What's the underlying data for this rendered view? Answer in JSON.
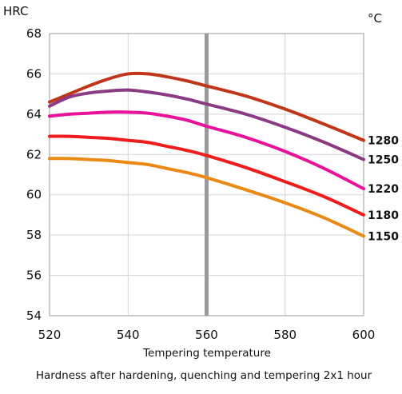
{
  "chart_data": {
    "type": "line",
    "title": "Hardness after hardening, quenching and tempering  2x1 hour",
    "xlabel": "Tempering temperature",
    "ylabel": "HRC",
    "legend_title": "°C",
    "xlim": [
      520,
      600
    ],
    "ylim": [
      54,
      68
    ],
    "xticks": [
      520,
      540,
      560,
      580,
      600
    ],
    "yticks": [
      54,
      56,
      58,
      60,
      62,
      64,
      66,
      68
    ],
    "grid": true,
    "legend_placement": "right, labels at line ends",
    "marker": {
      "x": 560,
      "color": "#9a9a9a"
    },
    "series": [
      {
        "name": "1280",
        "color": "#c0361a",
        "x": [
          520,
          525,
          530,
          535,
          540,
          545,
          550,
          555,
          560,
          570,
          580,
          590,
          600
        ],
        "y": [
          64.6,
          65.0,
          65.4,
          65.75,
          66.0,
          66.0,
          65.85,
          65.65,
          65.4,
          64.9,
          64.25,
          63.5,
          62.7
        ]
      },
      {
        "name": "1250",
        "color": "#8b3a84",
        "x": [
          520,
          525,
          530,
          535,
          540,
          545,
          550,
          555,
          560,
          570,
          580,
          590,
          600
        ],
        "y": [
          64.4,
          64.85,
          65.05,
          65.15,
          65.2,
          65.1,
          64.95,
          64.75,
          64.5,
          64.0,
          63.35,
          62.6,
          61.75
        ]
      },
      {
        "name": "1220",
        "color": "#e8129b",
        "x": [
          520,
          525,
          530,
          535,
          540,
          545,
          550,
          555,
          560,
          570,
          580,
          590,
          600
        ],
        "y": [
          63.9,
          64.0,
          64.05,
          64.1,
          64.1,
          64.05,
          63.9,
          63.7,
          63.4,
          62.85,
          62.15,
          61.3,
          60.3
        ]
      },
      {
        "name": "1180",
        "color": "#f01c1c",
        "x": [
          520,
          525,
          530,
          535,
          540,
          545,
          550,
          555,
          560,
          570,
          580,
          590,
          600
        ],
        "y": [
          62.9,
          62.9,
          62.85,
          62.8,
          62.7,
          62.6,
          62.4,
          62.2,
          61.95,
          61.35,
          60.65,
          59.9,
          59.0
        ]
      },
      {
        "name": "1150",
        "color": "#ea8a14",
        "x": [
          520,
          525,
          530,
          535,
          540,
          545,
          550,
          555,
          560,
          570,
          580,
          590,
          600
        ],
        "y": [
          61.8,
          61.8,
          61.75,
          61.7,
          61.6,
          61.5,
          61.3,
          61.1,
          60.85,
          60.25,
          59.6,
          58.85,
          57.95
        ]
      }
    ]
  }
}
